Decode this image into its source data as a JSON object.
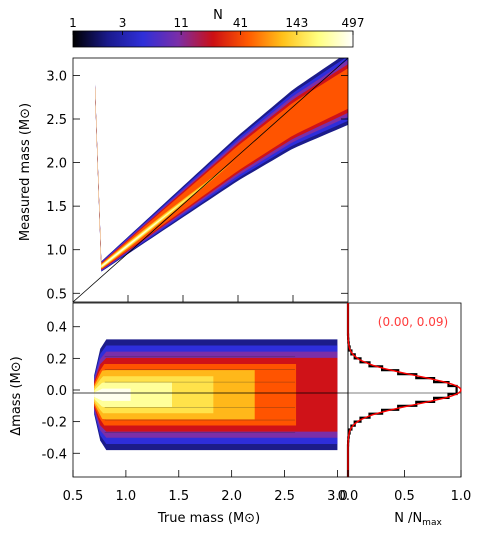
{
  "chart_data": [
    {
      "type": "heatmap",
      "panel": "top",
      "title": "",
      "xlabel": "",
      "ylabel": "Measured mass (M⊙)",
      "xlim": [
        0.5,
        3.0
      ],
      "ylim": [
        0.4,
        3.2
      ],
      "x_ticks": [],
      "y_ticks": [
        "0.5",
        "1.0",
        "1.5",
        "2.0",
        "2.5",
        "3.0"
      ],
      "grid": false,
      "colorbar": {
        "label": "N",
        "scale": "log",
        "tick_labels": [
          "1",
          "3",
          "11",
          "41",
          "143",
          "497"
        ],
        "min": 1,
        "max": 497,
        "stops": [
          "#000000",
          "#1a1a8c",
          "#2f2fd9",
          "#7a2ea8",
          "#cc0f14",
          "#ff5a00",
          "#ffc21a",
          "#ffff80",
          "#ffffff"
        ]
      },
      "reference_line": "one-to-one line y = x",
      "density": {
        "x_range": [
          0.7,
          3.0
        ],
        "ridge_points": [
          {
            "x": 0.75,
            "y": 0.8
          },
          {
            "x": 1.0,
            "y": 1.05
          },
          {
            "x": 1.5,
            "y": 1.55
          },
          {
            "x": 2.0,
            "y": 2.05
          },
          {
            "x": 2.5,
            "y": 2.5
          },
          {
            "x": 3.0,
            "y": 2.85
          }
        ]
      }
    },
    {
      "type": "heatmap",
      "panel": "bottom-left",
      "title": "",
      "xlabel": "True mass (M⊙)",
      "ylabel": "Δmass (M⊙)",
      "xlim": [
        0.5,
        3.1
      ],
      "ylim": [
        -0.55,
        0.55
      ],
      "x_ticks": [
        "0.5",
        "1.0",
        "1.5",
        "2.0",
        "2.5",
        "3.0"
      ],
      "y_ticks": [
        "-0.4",
        "-0.2",
        "0.0",
        "0.2",
        "0.4"
      ],
      "grid": false,
      "reference_line": "y = 0",
      "density": {
        "x_range": [
          0.7,
          3.0
        ],
        "center_y": -0.03,
        "half_width_y": 0.35
      }
    },
    {
      "type": "line",
      "panel": "bottom-right",
      "title": "",
      "xlabel": "N /N",
      "xlabel_subscript": "max",
      "ylabel": "",
      "xlim": [
        0.0,
        1.0
      ],
      "ylim": [
        -0.55,
        0.55
      ],
      "x_ticks": [
        "0.0",
        "0.5",
        "1.0"
      ],
      "y_ticks": [],
      "grid": false,
      "annotation": "(0.00, 0.09)",
      "annotation_color": "#ff3b3b",
      "series": [
        {
          "style": "histogram",
          "color": "#000000",
          "fit": {
            "mean": 0.0,
            "sigma": 0.09
          }
        },
        {
          "style": "gaussian",
          "color": "#ff0000",
          "mean": 0.0,
          "sigma": 0.09
        }
      ]
    }
  ]
}
